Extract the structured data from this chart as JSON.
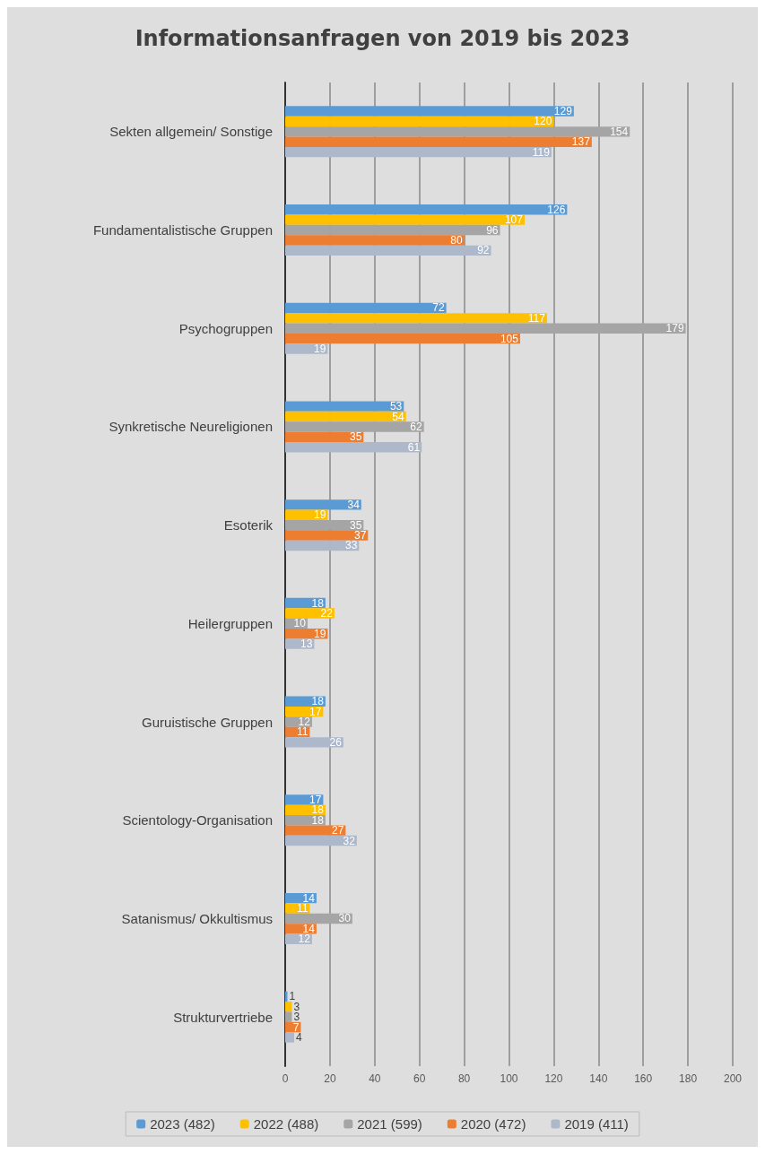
{
  "chart_data": {
    "type": "bar",
    "orientation": "horizontal",
    "title": "Informationsanfragen von 2019 bis 2023",
    "categories": [
      "Sekten allgemein/ Sonstige",
      "Fundamentalistische Gruppen",
      "Psychogruppen",
      "Synkretische Neureligionen",
      "Esoterik",
      "Heilergruppen",
      "Guruistische Gruppen",
      "Scientology-Organisation",
      "Satanismus/ Okkultismus",
      "Strukturvertriebe"
    ],
    "series": [
      {
        "name": "2023 (482)",
        "color": "#5b9bd5",
        "values": [
          129,
          126,
          72,
          53,
          34,
          18,
          18,
          17,
          14,
          1
        ]
      },
      {
        "name": "2022 (488)",
        "color": "#ffc000",
        "values": [
          120,
          107,
          117,
          54,
          19,
          22,
          17,
          18,
          11,
          3
        ]
      },
      {
        "name": "2021 (599)",
        "color": "#a5a5a5",
        "values": [
          154,
          96,
          179,
          62,
          35,
          10,
          12,
          18,
          30,
          3
        ]
      },
      {
        "name": "2020 (472)",
        "color": "#ed7d31",
        "values": [
          137,
          80,
          105,
          35,
          37,
          19,
          11,
          27,
          14,
          7
        ]
      },
      {
        "name": "2019 (411)",
        "color": "#adb9ca",
        "values": [
          119,
          92,
          19,
          61,
          33,
          13,
          26,
          32,
          12,
          4
        ]
      }
    ],
    "xlim": [
      0,
      200
    ],
    "xticks": [
      0,
      20,
      40,
      60,
      80,
      100,
      120,
      140,
      160,
      180,
      200
    ],
    "grid": "x",
    "legend": "bottom",
    "data_labels": true
  }
}
